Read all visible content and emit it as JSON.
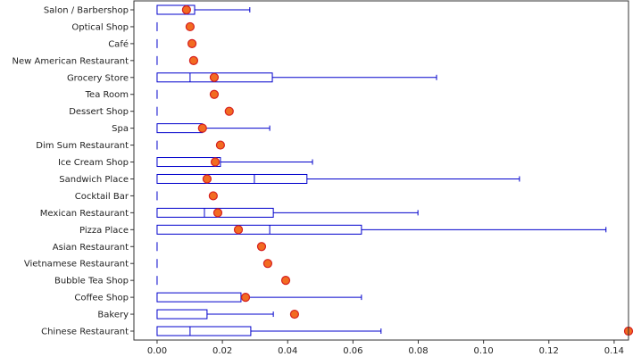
{
  "chart_data": {
    "type": "boxplot",
    "title": "",
    "xlabel": "",
    "ylabel": "",
    "xlim": [
      -0.0071,
      0.1444
    ],
    "xticks": [
      0.0,
      0.02,
      0.04,
      0.06,
      0.08,
      0.1,
      0.12,
      0.14
    ],
    "xtick_labels": [
      "0.00",
      "0.02",
      "0.04",
      "0.06",
      "0.08",
      "0.10",
      "0.12",
      "0.14"
    ],
    "grid": false,
    "box_color": "#0000cc",
    "marker_color": "#f26b21",
    "marker_edge_color": "#d62020",
    "categories": [
      "Salon / Barbershop",
      "Optical Shop",
      "Café",
      "New American Restaurant",
      "Grocery Store",
      "Tea Room",
      "Dessert Shop",
      "Spa",
      "Dim Sum Restaurant",
      "Ice Cream Shop",
      "Sandwich Place",
      "Cocktail Bar",
      "Mexican Restaurant",
      "Pizza Place",
      "Asian Restaurant",
      "Vietnamese Restaurant",
      "Bubble Tea Shop",
      "Coffee Shop",
      "Bakery",
      "Chinese Restaurant"
    ],
    "boxes": [
      {
        "q1": 0,
        "median": 0,
        "q3": 0.0115,
        "whisker_low": 0,
        "whisker_high": 0.0284
      },
      {
        "q1": 0,
        "median": 0,
        "q3": 0,
        "whisker_low": 0,
        "whisker_high": 0
      },
      {
        "q1": 0,
        "median": 0,
        "q3": 0,
        "whisker_low": 0,
        "whisker_high": 0
      },
      {
        "q1": 0,
        "median": 0,
        "q3": 0,
        "whisker_low": 0,
        "whisker_high": 0
      },
      {
        "q1": 0,
        "median": 0.0101,
        "q3": 0.0353,
        "whisker_low": 0,
        "whisker_high": 0.0856
      },
      {
        "q1": 0,
        "median": 0,
        "q3": 0,
        "whisker_low": 0,
        "whisker_high": 0
      },
      {
        "q1": 0,
        "median": 0,
        "q3": 0,
        "whisker_low": 0,
        "whisker_high": 0
      },
      {
        "q1": 0,
        "median": 0,
        "q3": 0.0139,
        "whisker_low": 0,
        "whisker_high": 0.0345
      },
      {
        "q1": 0,
        "median": 0,
        "q3": 0,
        "whisker_low": 0,
        "whisker_high": 0
      },
      {
        "q1": 0,
        "median": 0,
        "q3": 0.0194,
        "whisker_low": 0,
        "whisker_high": 0.0476
      },
      {
        "q1": 0,
        "median": 0.0298,
        "q3": 0.0459,
        "whisker_low": 0,
        "whisker_high": 0.111
      },
      {
        "q1": 0,
        "median": 0,
        "q3": 0,
        "whisker_low": 0,
        "whisker_high": 0
      },
      {
        "q1": 0,
        "median": 0.0145,
        "q3": 0.0356,
        "whisker_low": 0,
        "whisker_high": 0.0799
      },
      {
        "q1": 0,
        "median": 0.0345,
        "q3": 0.0626,
        "whisker_low": 0,
        "whisker_high": 0.1375
      },
      {
        "q1": 0,
        "median": 0,
        "q3": 0,
        "whisker_low": 0,
        "whisker_high": 0
      },
      {
        "q1": 0,
        "median": 0,
        "q3": 0,
        "whisker_low": 0,
        "whisker_high": 0
      },
      {
        "q1": 0,
        "median": 0,
        "q3": 0,
        "whisker_low": 0,
        "whisker_high": 0
      },
      {
        "q1": 0,
        "median": 0,
        "q3": 0.0257,
        "whisker_low": 0,
        "whisker_high": 0.0626
      },
      {
        "q1": 0,
        "median": 0,
        "q3": 0.0153,
        "whisker_low": 0,
        "whisker_high": 0.0356
      },
      {
        "q1": 0,
        "median": 0.0101,
        "q3": 0.0287,
        "whisker_low": 0,
        "whisker_high": 0.0686
      }
    ],
    "markers": [
      0.009,
      0.0101,
      0.0107,
      0.0112,
      0.0175,
      0.0175,
      0.0221,
      0.0139,
      0.0194,
      0.0178,
      0.0153,
      0.0172,
      0.0186,
      0.0249,
      0.032,
      0.0339,
      0.0394,
      0.0271,
      0.0421,
      0.1444
    ]
  }
}
